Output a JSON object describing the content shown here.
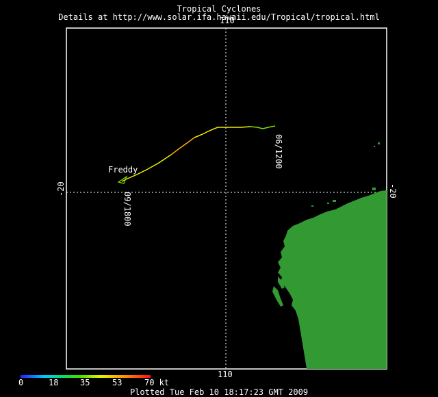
{
  "header": {
    "title": "Tropical Cyclones",
    "subtitle": "Details at http://www.solar.ifa.hawaii.edu/Tropical/tropical.html"
  },
  "axes": {
    "lon_top": "110",
    "lon_bottom": "110",
    "lat_left": "-20",
    "lat_right": "-20"
  },
  "storm": {
    "name": "Freddy",
    "start_label": "09/1800",
    "end_label": "06/1200"
  },
  "colorbar": {
    "ticks": [
      "0",
      "18",
      "35",
      "53",
      "70 kt"
    ]
  },
  "footer": {
    "plotted": "Plotted Tue Feb 10 18:17:23 GMT 2009"
  },
  "colors": {
    "background": "#000000",
    "land": "#339933",
    "frame": "#ffffff",
    "track_green": "#80e000",
    "track_yellow": "#f0f000",
    "track_orange": "#ffb000"
  }
}
